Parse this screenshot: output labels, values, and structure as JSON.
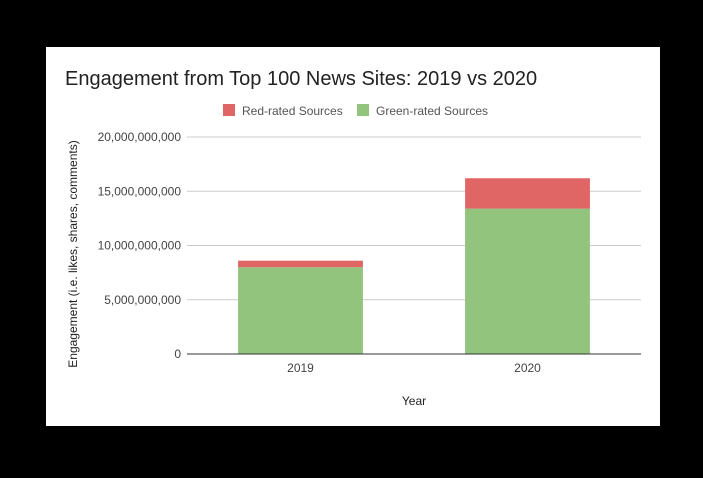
{
  "chart_data": {
    "type": "bar",
    "stacked": true,
    "title": "Engagement from Top 100 News Sites: 2019 vs 2020",
    "xlabel": "Year",
    "ylabel": "Engagement (i.e. likes, shares, comments)",
    "categories": [
      "2019",
      "2020"
    ],
    "series": [
      {
        "name": "Green-rated Sources",
        "color": "#93c47d",
        "values": [
          8000000000,
          13400000000
        ]
      },
      {
        "name": "Red-rated Sources",
        "color": "#e06666",
        "values": [
          600000000,
          2800000000
        ]
      }
    ],
    "legend": [
      "Red-rated Sources",
      "Green-rated Sources"
    ],
    "legend_position": "top",
    "ylim": [
      0,
      20000000000
    ],
    "yticks": [
      0,
      5000000000,
      10000000000,
      15000000000,
      20000000000
    ],
    "ytick_labels": [
      "0",
      "5,000,000,000",
      "10,000,000,000",
      "15,000,000,000",
      "20,000,000,000"
    ],
    "grid": true
  }
}
